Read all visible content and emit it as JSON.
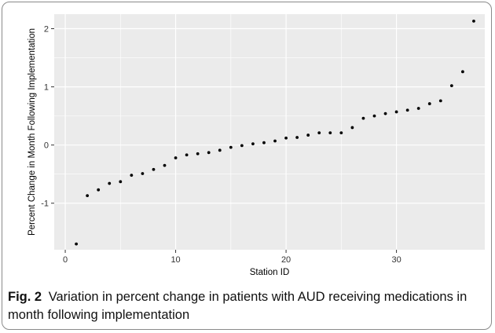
{
  "caption": {
    "label": "Fig. 2",
    "text": "Variation in percent change in patients with AUD receiving medications in month following implementation"
  },
  "colors": {
    "panel_background": "#ebebeb",
    "gridline": "#ffffff",
    "point": "#000000"
  },
  "chart_data": {
    "type": "scatter",
    "xlabel": "Station ID",
    "ylabel": "Percent Change in Month Following Implementation",
    "xlim": [
      -1,
      38
    ],
    "ylim": [
      -1.8,
      2.25
    ],
    "x_ticks": [
      0,
      10,
      20,
      30
    ],
    "y_ticks": [
      -1,
      0,
      1,
      2
    ],
    "grid": true,
    "legend": "none",
    "points": [
      {
        "x": 1,
        "y": -1.7
      },
      {
        "x": 2,
        "y": -0.87
      },
      {
        "x": 3,
        "y": -0.77
      },
      {
        "x": 4,
        "y": -0.66
      },
      {
        "x": 5,
        "y": -0.63
      },
      {
        "x": 6,
        "y": -0.52
      },
      {
        "x": 7,
        "y": -0.49
      },
      {
        "x": 8,
        "y": -0.42
      },
      {
        "x": 9,
        "y": -0.35
      },
      {
        "x": 10,
        "y": -0.22
      },
      {
        "x": 11,
        "y": -0.17
      },
      {
        "x": 12,
        "y": -0.15
      },
      {
        "x": 13,
        "y": -0.13
      },
      {
        "x": 14,
        "y": -0.09
      },
      {
        "x": 15,
        "y": -0.04
      },
      {
        "x": 16,
        "y": -0.01
      },
      {
        "x": 17,
        "y": 0.02
      },
      {
        "x": 18,
        "y": 0.04
      },
      {
        "x": 19,
        "y": 0.07
      },
      {
        "x": 20,
        "y": 0.12
      },
      {
        "x": 21,
        "y": 0.13
      },
      {
        "x": 22,
        "y": 0.17
      },
      {
        "x": 23,
        "y": 0.21
      },
      {
        "x": 24,
        "y": 0.21
      },
      {
        "x": 25,
        "y": 0.21
      },
      {
        "x": 26,
        "y": 0.3
      },
      {
        "x": 27,
        "y": 0.46
      },
      {
        "x": 28,
        "y": 0.5
      },
      {
        "x": 29,
        "y": 0.54
      },
      {
        "x": 30,
        "y": 0.57
      },
      {
        "x": 31,
        "y": 0.6
      },
      {
        "x": 32,
        "y": 0.63
      },
      {
        "x": 33,
        "y": 0.71
      },
      {
        "x": 34,
        "y": 0.76
      },
      {
        "x": 35,
        "y": 1.02
      },
      {
        "x": 36,
        "y": 1.26
      },
      {
        "x": 37,
        "y": 2.13
      }
    ]
  }
}
